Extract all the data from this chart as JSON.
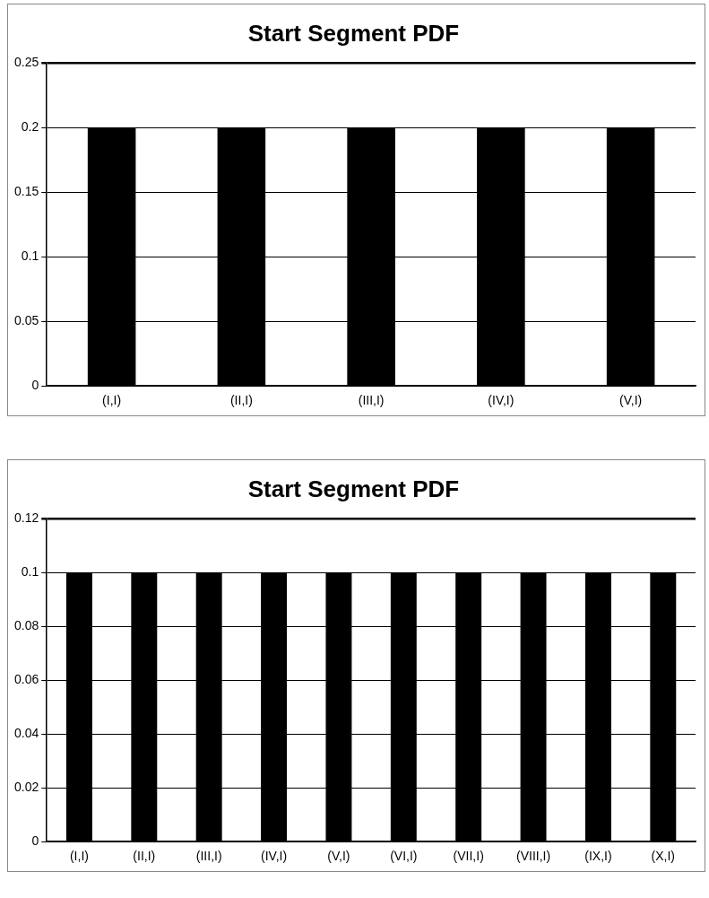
{
  "chart_data": [
    {
      "type": "bar",
      "title": "Start Segment PDF",
      "categories": [
        "(I,I)",
        "(II,I)",
        "(III,I)",
        "(IV,I)",
        "(V,I)"
      ],
      "values": [
        0.2,
        0.2,
        0.2,
        0.2,
        0.2
      ],
      "color": "#000000",
      "ylim": [
        0,
        0.25
      ],
      "yticks": [
        0,
        0.05,
        0.1,
        0.15,
        0.2,
        0.25
      ],
      "grid": "y"
    },
    {
      "type": "bar",
      "title": "Start Segment PDF",
      "categories": [
        "(I,I)",
        "(II,I)",
        "(III,I)",
        "(IV,I)",
        "(V,I)",
        "(VI,I)",
        "(VII,I)",
        "(VIII,I)",
        "(IX,I)",
        "(X,I)"
      ],
      "values": [
        0.1,
        0.1,
        0.1,
        0.1,
        0.1,
        0.1,
        0.1,
        0.1,
        0.1,
        0.1
      ],
      "color": "#000000",
      "ylim": [
        0,
        0.12
      ],
      "yticks": [
        0,
        0.02,
        0.04,
        0.06,
        0.08,
        0.1,
        0.12
      ],
      "grid": "y"
    }
  ]
}
